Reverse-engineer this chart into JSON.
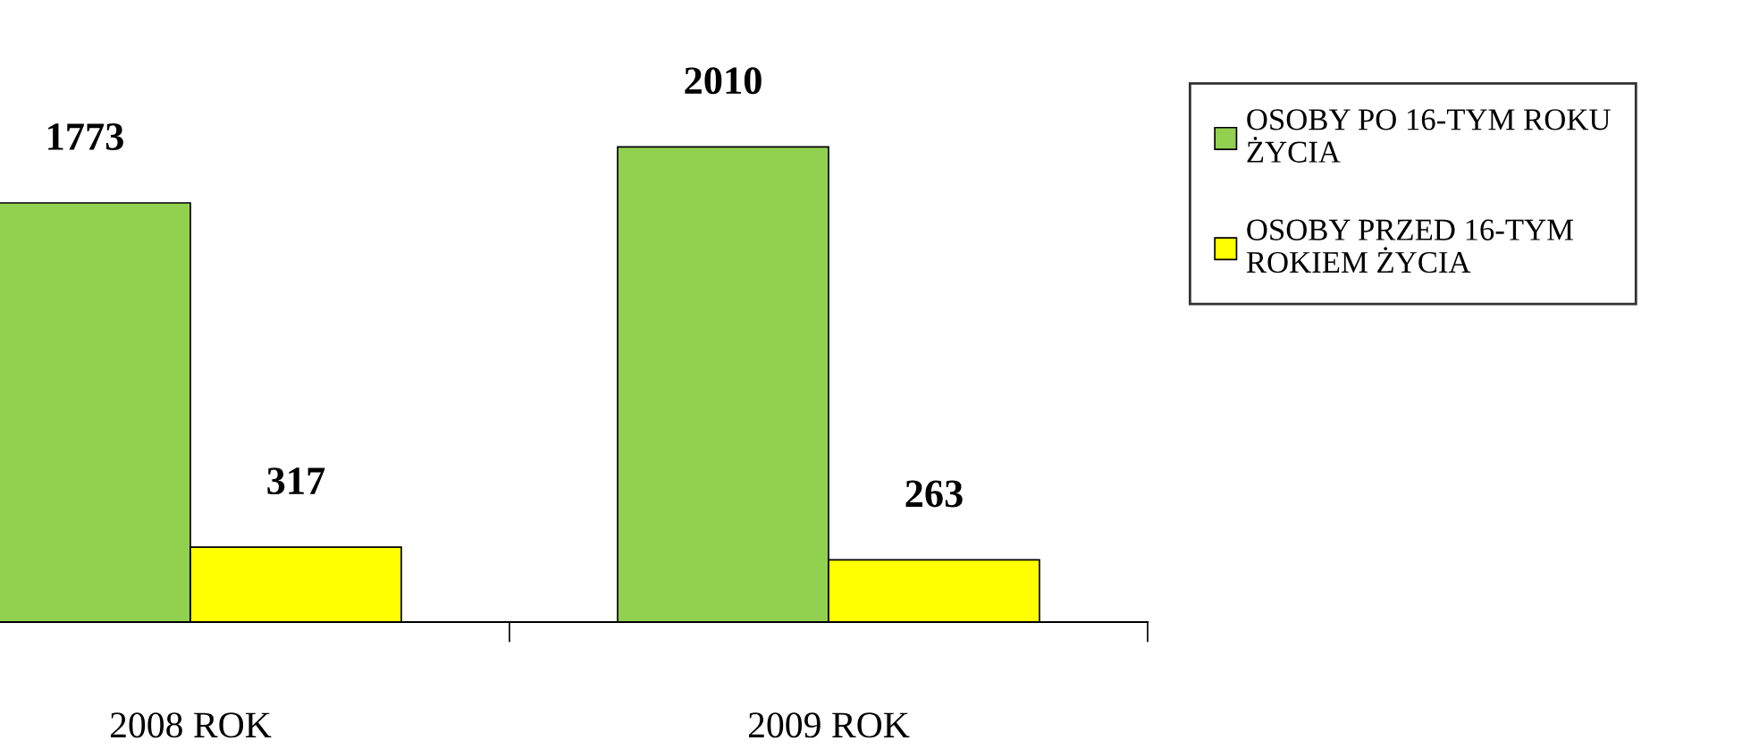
{
  "chart_data": {
    "type": "bar",
    "categories": [
      "2008 ROK",
      "2009 ROK"
    ],
    "series": [
      {
        "name": "OSOBY PO 16-TYM ROKU\nŻYCIA",
        "color": "#92d050",
        "values": [
          1773,
          2010
        ]
      },
      {
        "name": "OSOBY PRZED 16-TYM\nROKIEM ŻYCIA",
        "color": "#ffff00",
        "values": [
          317,
          263
        ]
      }
    ],
    "data_labels": true,
    "tick_labels": "x",
    "legend": "right",
    "grid": false
  }
}
